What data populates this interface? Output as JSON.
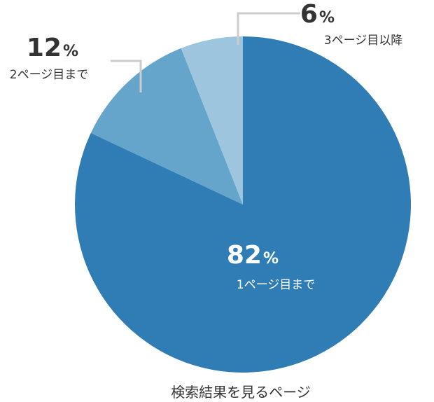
{
  "chart_data": {
    "type": "pie",
    "title": "検索結果を見るページ",
    "slices": [
      {
        "label": "1ページ目まで",
        "value": 82,
        "display": "82",
        "unit": "%",
        "color": "#2f7db4"
      },
      {
        "label": "2ページ目まで",
        "value": 12,
        "display": "12",
        "unit": "%",
        "color": "#65a4cb"
      },
      {
        "label": "3ページ目以降",
        "value": 6,
        "display": "6",
        "unit": "%",
        "color": "#9dc5dd"
      }
    ],
    "legend": "none",
    "label_color": "#333333",
    "inner_label_color": "#ffffff",
    "leader_line_color": "#cccccc"
  }
}
